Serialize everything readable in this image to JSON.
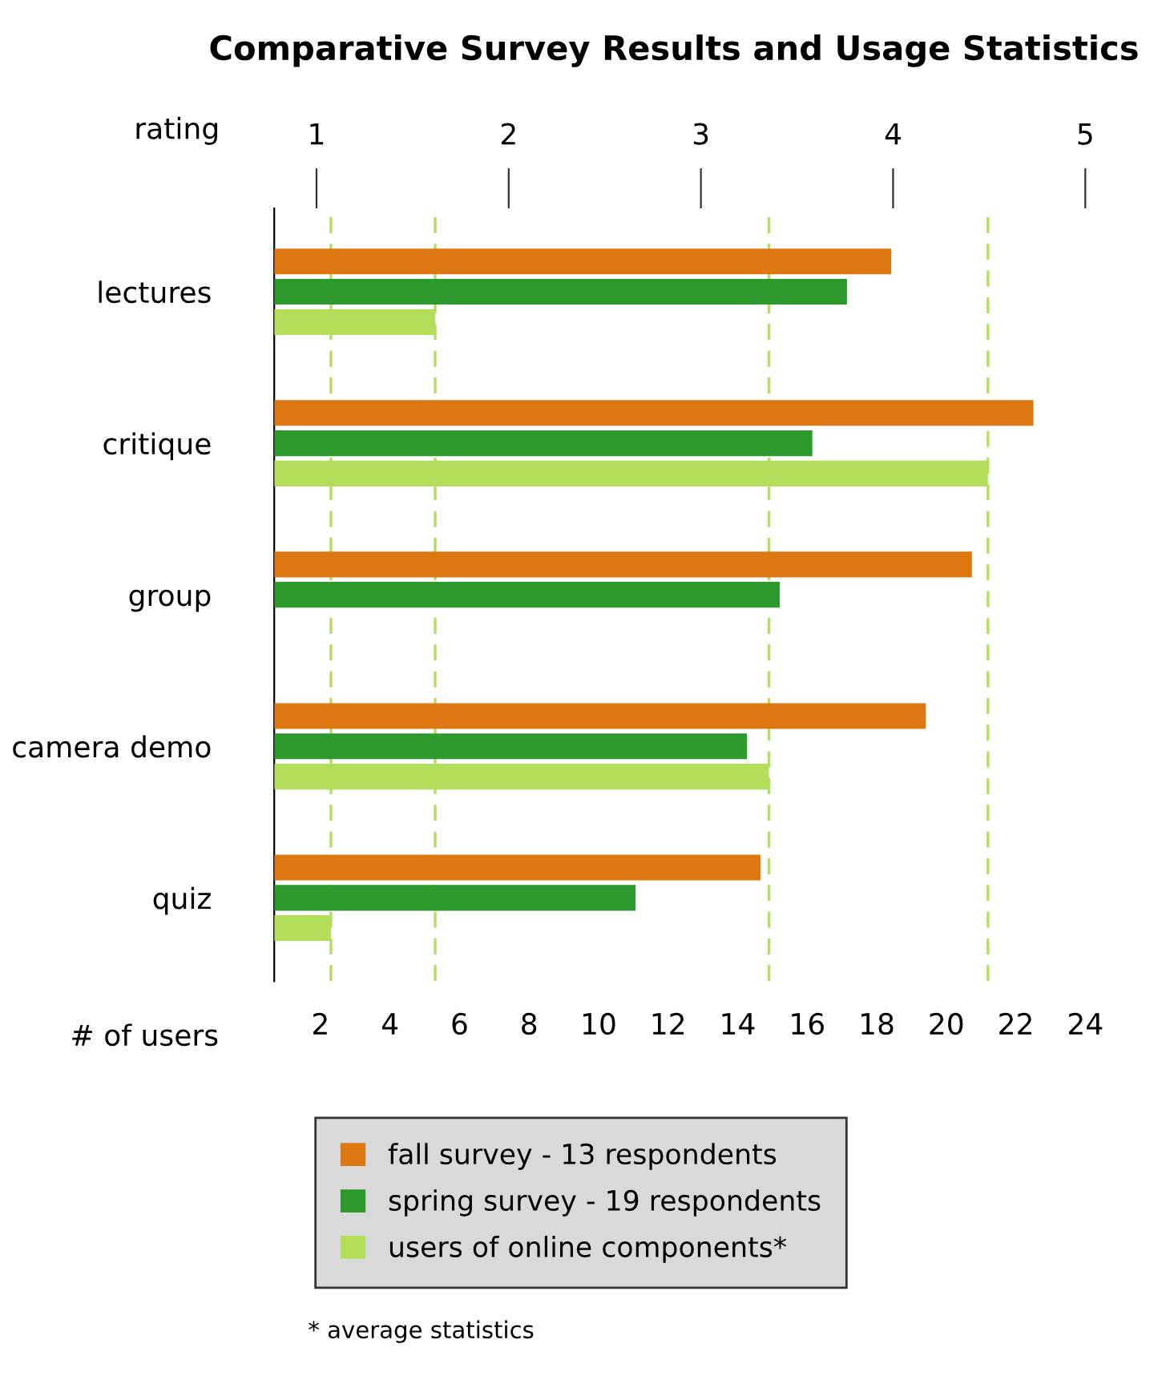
{
  "chart_data": {
    "type": "bar",
    "orientation": "horizontal",
    "title": "Comparative Survey Results and Usage Statistics",
    "categories": [
      "lectures",
      "critique",
      "group",
      "camera demo",
      "quiz"
    ],
    "series": [
      {
        "name": "fall survey - 13 respondents",
        "color": "#dd7711",
        "axis": "x2",
        "values": [
          3.99,
          4.73,
          4.41,
          4.17,
          3.31
        ]
      },
      {
        "name": "spring survey - 19 respondents",
        "color": "#2e9a2e",
        "axis": "x2",
        "values": [
          3.76,
          3.58,
          3.41,
          3.24,
          2.66
        ]
      },
      {
        "name": "users of online components*",
        "color": "#b3de5a",
        "values": [
          5.3,
          21.2,
          null,
          14.9,
          2.3
        ]
      }
    ],
    "xlabel": "# of users",
    "x2label": "rating",
    "xlim": [
      0.67,
      24
    ],
    "xticks": [
      2,
      4,
      6,
      8,
      10,
      12,
      14,
      16,
      18,
      20,
      22,
      24
    ],
    "x2lim": [
      0.78,
      5
    ],
    "x2ticks": [
      1,
      2,
      3,
      4,
      5
    ],
    "ref_lines": [
      {
        "axis": "x",
        "value": 5.3,
        "color": "#b3de5a",
        "line_style": "dashed"
      },
      {
        "axis": "x",
        "value": 21.2,
        "color": "#b3de5a",
        "line_style": "dashed"
      },
      {
        "axis": "x",
        "value": 14.9,
        "color": "#b3de5a",
        "line_style": "dashed"
      },
      {
        "axis": "x",
        "value": 2.3,
        "color": "#b3de5a",
        "line_style": "dashed"
      }
    ],
    "legend": "bottom",
    "grid": false,
    "annotations": [
      "* average statistics"
    ]
  }
}
